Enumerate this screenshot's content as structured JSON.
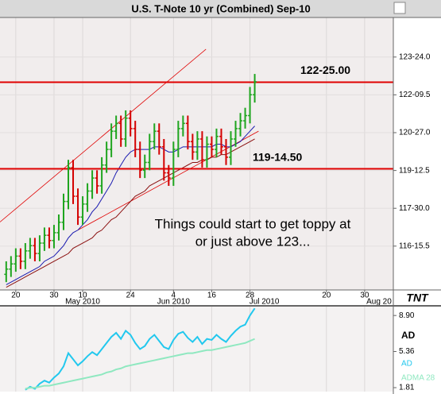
{
  "chart_data": [
    {
      "type": "ohlc",
      "title": "U.S. T-Note 10 yr (Combined) Sep-10",
      "logo": "TNT",
      "xlim": [
        -1.3,
        81
      ],
      "xticks": [
        {
          "value": 2,
          "label": "20"
        },
        {
          "value": 10,
          "label": "30"
        },
        {
          "value": 16,
          "label": "10"
        },
        {
          "value": 26,
          "label": "24"
        },
        {
          "value": 35,
          "label": "4"
        },
        {
          "value": 43,
          "label": "16"
        },
        {
          "value": 51,
          "label": "28"
        },
        {
          "value": 67,
          "label": "20"
        },
        {
          "value": 75,
          "label": "30"
        }
      ],
      "month_labels": [
        {
          "value": 16,
          "label": "May 2010"
        },
        {
          "value": 35,
          "label": "Jun 2010"
        },
        {
          "value": 54,
          "label": "Jul 2010"
        },
        {
          "value": 78,
          "label": "Aug 20"
        }
      ],
      "ylim": [
        114.8,
        125.27
      ],
      "yticks": [
        {
          "value": 123.75,
          "label": "123-24.0"
        },
        {
          "value": 122.296875,
          "label": "122-09.5"
        },
        {
          "value": 120.84375,
          "label": "120-27.0"
        },
        {
          "value": 119.390625,
          "label": "119-12.5"
        },
        {
          "value": 117.9375,
          "label": "117-30.0"
        },
        {
          "value": 116.484375,
          "label": "116-15.5"
        }
      ],
      "grid": true,
      "up_color": "#1fa51f",
      "down_color": "#d40000",
      "open": [
        115.4,
        115.6,
        115.8,
        116.1,
        115.9,
        116.3,
        116.5,
        116.2,
        116.6,
        116.9,
        116.7,
        117.0,
        117.4,
        118.2,
        119.5,
        118.4,
        117.6,
        118.1,
        118.6,
        119.1,
        118.8,
        119.6,
        120.2,
        120.9,
        121.2,
        120.6,
        121.4,
        121.0,
        120.2,
        119.4,
        119.7,
        120.5,
        120.9,
        120.3,
        119.3,
        119.1,
        120.2,
        121.0,
        121.2,
        120.5,
        120.1,
        120.6,
        119.8,
        120.4,
        120.2,
        120.7,
        120.3,
        119.9,
        120.6,
        121.0,
        121.3,
        121.5,
        122.3
      ],
      "high": [
        115.9,
        116.1,
        116.4,
        116.4,
        116.6,
        116.8,
        116.8,
        116.9,
        117.2,
        117.2,
        117.3,
        117.7,
        118.5,
        119.8,
        119.8,
        118.7,
        118.4,
        118.9,
        119.4,
        119.4,
        119.9,
        120.5,
        121.2,
        121.5,
        121.5,
        121.7,
        121.7,
        121.3,
        120.5,
        120.0,
        120.8,
        121.2,
        121.2,
        120.6,
        119.6,
        120.5,
        121.3,
        121.5,
        121.5,
        120.8,
        120.9,
        120.9,
        120.7,
        120.7,
        121.0,
        121.0,
        120.6,
        120.9,
        121.3,
        121.6,
        121.8,
        122.6,
        123.1
      ],
      "low": [
        115.1,
        115.3,
        115.5,
        115.6,
        115.6,
        116.0,
        115.9,
        115.9,
        116.3,
        116.4,
        116.4,
        116.7,
        117.1,
        117.9,
        118.1,
        117.3,
        117.3,
        117.8,
        118.3,
        118.5,
        118.5,
        119.3,
        119.9,
        120.6,
        120.3,
        120.3,
        120.7,
        119.9,
        119.1,
        119.1,
        119.4,
        120.2,
        120.0,
        119.0,
        118.8,
        118.8,
        119.9,
        120.7,
        120.2,
        119.8,
        119.8,
        119.5,
        119.5,
        119.9,
        119.9,
        120.0,
        119.6,
        119.6,
        120.3,
        120.7,
        121.0,
        121.2,
        122.0
      ],
      "close": [
        115.6,
        115.8,
        116.1,
        115.9,
        116.3,
        116.5,
        116.2,
        116.6,
        116.9,
        116.7,
        117.0,
        117.4,
        118.2,
        119.5,
        118.4,
        117.6,
        118.1,
        118.6,
        119.1,
        118.8,
        119.6,
        120.2,
        120.9,
        121.2,
        120.6,
        121.4,
        121.0,
        120.2,
        119.4,
        119.7,
        120.5,
        120.9,
        120.3,
        119.3,
        119.1,
        120.2,
        121.0,
        121.2,
        120.5,
        120.1,
        120.6,
        119.8,
        120.4,
        120.2,
        120.7,
        120.3,
        119.9,
        120.6,
        121.0,
        121.3,
        121.5,
        122.3,
        122.8
      ],
      "overlays": [
        {
          "color": "#1a1ab0",
          "values": [
            115.0,
            115.1,
            115.2,
            115.3,
            115.4,
            115.5,
            115.6,
            115.7,
            115.9,
            116.0,
            116.1,
            116.3,
            116.5,
            116.8,
            117.0,
            117.1,
            117.3,
            117.5,
            117.8,
            118.0,
            118.3,
            118.6,
            118.9,
            119.3,
            119.6,
            119.9,
            120.1,
            120.2,
            120.2,
            120.2,
            120.2,
            120.3,
            120.3,
            120.2,
            120.1,
            120.1,
            120.2,
            120.3,
            120.3,
            120.3,
            120.3,
            120.3,
            120.3,
            120.3,
            120.4,
            120.4,
            120.3,
            120.3,
            120.4,
            120.5,
            120.7,
            120.9,
            121.1
          ]
        },
        {
          "color": "#8b1010",
          "values": [
            114.9,
            115.0,
            115.1,
            115.2,
            115.3,
            115.4,
            115.5,
            115.6,
            115.7,
            115.8,
            115.9,
            116.0,
            116.1,
            116.2,
            116.4,
            116.5,
            116.6,
            116.7,
            116.8,
            117.0,
            117.1,
            117.3,
            117.5,
            117.6,
            117.8,
            118.0,
            118.2,
            118.4,
            118.5,
            118.6,
            118.8,
            118.9,
            119.0,
            119.1,
            119.2,
            119.3,
            119.4,
            119.5,
            119.6,
            119.7,
            119.7,
            119.8,
            119.8,
            119.9,
            119.9,
            120.0,
            120.0,
            120.1,
            120.2,
            120.3,
            120.4,
            120.5,
            120.6
          ]
        }
      ],
      "trendlines": [
        {
          "color": "#e00000",
          "x": [
            -1.3,
            41.8
          ],
          "y": [
            117.41,
            124.05
          ]
        },
        {
          "color": "#e00000",
          "x": [
            15,
            52.8
          ],
          "y": [
            117.1,
            120.9
          ]
        }
      ],
      "levels": [
        {
          "value": 122.78125,
          "label": "122-25.00",
          "color": "#e00000"
        },
        {
          "value": 119.453125,
          "label": "119-14.50",
          "color": "#e00000"
        }
      ],
      "annotation": [
        "Things could start to get toppy at",
        "or just above 123..."
      ]
    },
    {
      "type": "line",
      "label": "AD",
      "xlim": [
        -1.3,
        81
      ],
      "ylim": [
        1.42,
        9.85
      ],
      "yticks": [
        {
          "value": 8.9,
          "label": "8.90"
        },
        5.36,
        1.81
      ],
      "series": [
        {
          "name": "AD",
          "color": "#22c8ee",
          "values": [
            null,
            null,
            null,
            null,
            1.6,
            1.9,
            1.7,
            2.2,
            2.5,
            2.3,
            2.8,
            3.2,
            3.9,
            5.2,
            4.6,
            4.0,
            4.4,
            4.9,
            5.3,
            5.0,
            5.6,
            6.2,
            6.8,
            7.2,
            6.6,
            7.4,
            7.0,
            6.2,
            5.6,
            5.9,
            6.6,
            7.0,
            6.4,
            5.8,
            5.6,
            6.5,
            7.1,
            7.3,
            6.7,
            6.3,
            6.8,
            6.1,
            6.6,
            6.5,
            7.0,
            6.6,
            6.3,
            6.9,
            7.4,
            7.8,
            8.0,
            8.9,
            9.6
          ]
        },
        {
          "name": "ADMA 28",
          "color": "#8fe8c0",
          "values": [
            null,
            null,
            null,
            null,
            1.7,
            1.8,
            1.8,
            1.9,
            2.0,
            2.0,
            2.1,
            2.2,
            2.3,
            2.4,
            2.5,
            2.6,
            2.7,
            2.8,
            2.9,
            3.0,
            3.1,
            3.3,
            3.4,
            3.6,
            3.7,
            3.9,
            4.0,
            4.1,
            4.2,
            4.3,
            4.4,
            4.5,
            4.6,
            4.7,
            4.8,
            4.9,
            5.0,
            5.1,
            5.2,
            5.2,
            5.3,
            5.4,
            5.5,
            5.5,
            5.6,
            5.7,
            5.8,
            5.9,
            6.0,
            6.1,
            6.2,
            6.4,
            6.6
          ]
        }
      ]
    }
  ]
}
